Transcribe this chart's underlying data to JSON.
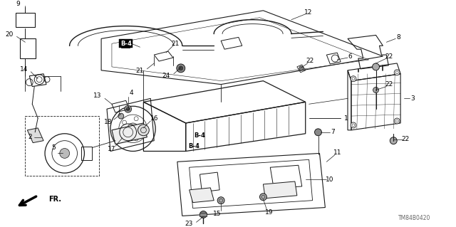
{
  "bg_color": "#ffffff",
  "line_color": "#1a1a1a",
  "fig_width": 6.4,
  "fig_height": 3.19,
  "dpi": 100,
  "watermark": "TM84B0420",
  "direction_label": "FR."
}
